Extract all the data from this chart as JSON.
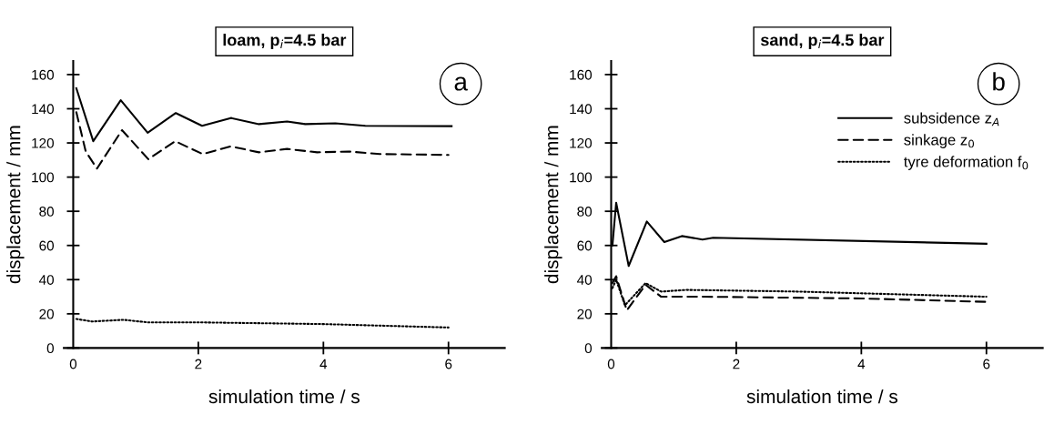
{
  "chart_data": [
    {
      "type": "line",
      "title": "loam, p$_{i}$=4.5 bar",
      "xlabel": "simulation time / s",
      "ylabel": "displacement / mm",
      "annotations": [
        "a"
      ],
      "xlim": [
        -0.15,
        6.9
      ],
      "ylim": [
        0,
        168
      ],
      "xticks": [
        0,
        2,
        4,
        6
      ],
      "yticks": [
        0,
        20,
        40,
        60,
        80,
        100,
        120,
        140,
        160
      ],
      "grid": false,
      "legend": false,
      "series": [
        {
          "color": "#000000",
          "line_style": "solid",
          "x": [
            0.05,
            0.32,
            0.76,
            1.19,
            1.64,
            2.06,
            2.52,
            2.97,
            3.42,
            3.71,
            4.19,
            4.67,
            6.05
          ],
          "values": [
            152,
            121,
            145,
            126,
            137.5,
            130,
            134.6,
            131,
            132.5,
            131,
            131.5,
            130,
            129.8
          ]
        },
        {
          "color": "#000000",
          "line_style": "dashed",
          "x": [
            0.05,
            0.2,
            0.38,
            0.78,
            1.2,
            1.63,
            2.07,
            2.52,
            2.97,
            3.42,
            3.9,
            4.4,
            4.9,
            6.0
          ],
          "values": [
            138,
            115,
            105,
            127.5,
            110.5,
            121,
            113.5,
            118,
            114.5,
            116.5,
            114.5,
            115,
            113.5,
            113
          ]
        },
        {
          "color": "#000000",
          "line_style": "dotted",
          "x": [
            0.05,
            0.3,
            0.8,
            1.2,
            2,
            4,
            6
          ],
          "values": [
            17,
            15.5,
            16.5,
            15,
            15,
            14,
            12
          ]
        }
      ]
    },
    {
      "type": "line",
      "title": "sand, p$_{i}$=4.5 bar",
      "xlabel": "simulation time / s",
      "ylabel": "displacement / mm",
      "annotations": [
        "b"
      ],
      "xlim": [
        -0.15,
        6.9
      ],
      "ylim": [
        0,
        168
      ],
      "xticks": [
        0,
        2,
        4,
        6
      ],
      "yticks": [
        0,
        20,
        40,
        60,
        80,
        100,
        120,
        140,
        160
      ],
      "grid": false,
      "legend": "right",
      "series": [
        {
          "name": "subsidence z$_{A}$",
          "color": "#000000",
          "line_style": "solid",
          "x": [
            0.02,
            0.08,
            0.28,
            0.57,
            0.85,
            1.13,
            1.46,
            1.63,
            6.0
          ],
          "values": [
            60,
            85,
            48,
            74,
            62,
            65.5,
            63.5,
            64.5,
            61
          ]
        },
        {
          "name": "sinkage z$_{0}$",
          "color": "#000000",
          "line_style": "dashed",
          "x": [
            0.02,
            0.08,
            0.25,
            0.55,
            0.8,
            1.5,
            4,
            6
          ],
          "values": [
            38,
            42,
            22,
            37,
            30,
            30,
            29,
            27
          ]
        },
        {
          "name": "tyre deformation f$_{0}$",
          "color": "#000000",
          "line_style": "dotted",
          "x": [
            0.02,
            0.08,
            0.22,
            0.55,
            0.8,
            1.2,
            3,
            6
          ],
          "values": [
            35,
            40,
            25,
            38,
            33,
            34,
            33,
            30
          ]
        }
      ]
    }
  ]
}
